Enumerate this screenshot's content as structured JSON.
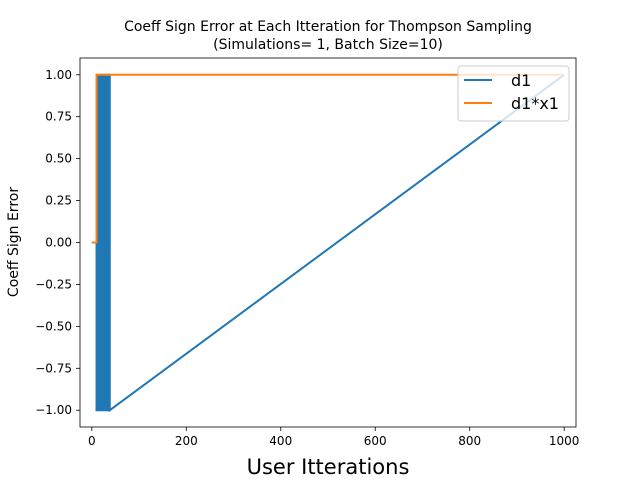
{
  "chart_data": {
    "type": "line",
    "title": "Coeff Sign Error at Each Itteration for Thompson Sampling",
    "subtitle": "(Simulations= 1, Batch Size=10)",
    "xlabel": "User Itterations",
    "ylabel": "Coeff Sign Error",
    "xlim": [
      -25,
      1025
    ],
    "ylim": [
      -1.1,
      1.1
    ],
    "x_ticks": [
      0,
      200,
      400,
      600,
      800,
      1000
    ],
    "y_ticks": [
      -1.0,
      -0.75,
      -0.5,
      -0.25,
      0.0,
      0.25,
      0.5,
      0.75,
      1.0
    ],
    "x_tick_labels": [
      "0",
      "200",
      "400",
      "600",
      "800",
      "1000"
    ],
    "y_tick_labels": [
      "−1.00",
      "−0.75",
      "−0.50",
      "−0.25",
      "0.00",
      "0.25",
      "0.50",
      "0.75",
      "1.00"
    ],
    "grid": false,
    "legend_position": "top-right",
    "series": [
      {
        "name": "d1",
        "color": "#1f77b4",
        "x": [
          0,
          10,
          10,
          12,
          12,
          14,
          14,
          18,
          18,
          20,
          20,
          24,
          24,
          26,
          26,
          30,
          30,
          32,
          32,
          36,
          36,
          38,
          38,
          1000
        ],
        "y": [
          0,
          0,
          -1,
          -1,
          1,
          1,
          -1,
          -1,
          1,
          1,
          -1,
          -1,
          1,
          1,
          -1,
          -1,
          1,
          1,
          -1,
          -1,
          1,
          1,
          -1,
          1
        ]
      },
      {
        "name": "d1*x1",
        "color": "#ff7f0e",
        "x": [
          0,
          10,
          10,
          1000
        ],
        "y": [
          0,
          0,
          1,
          1
        ]
      }
    ]
  }
}
